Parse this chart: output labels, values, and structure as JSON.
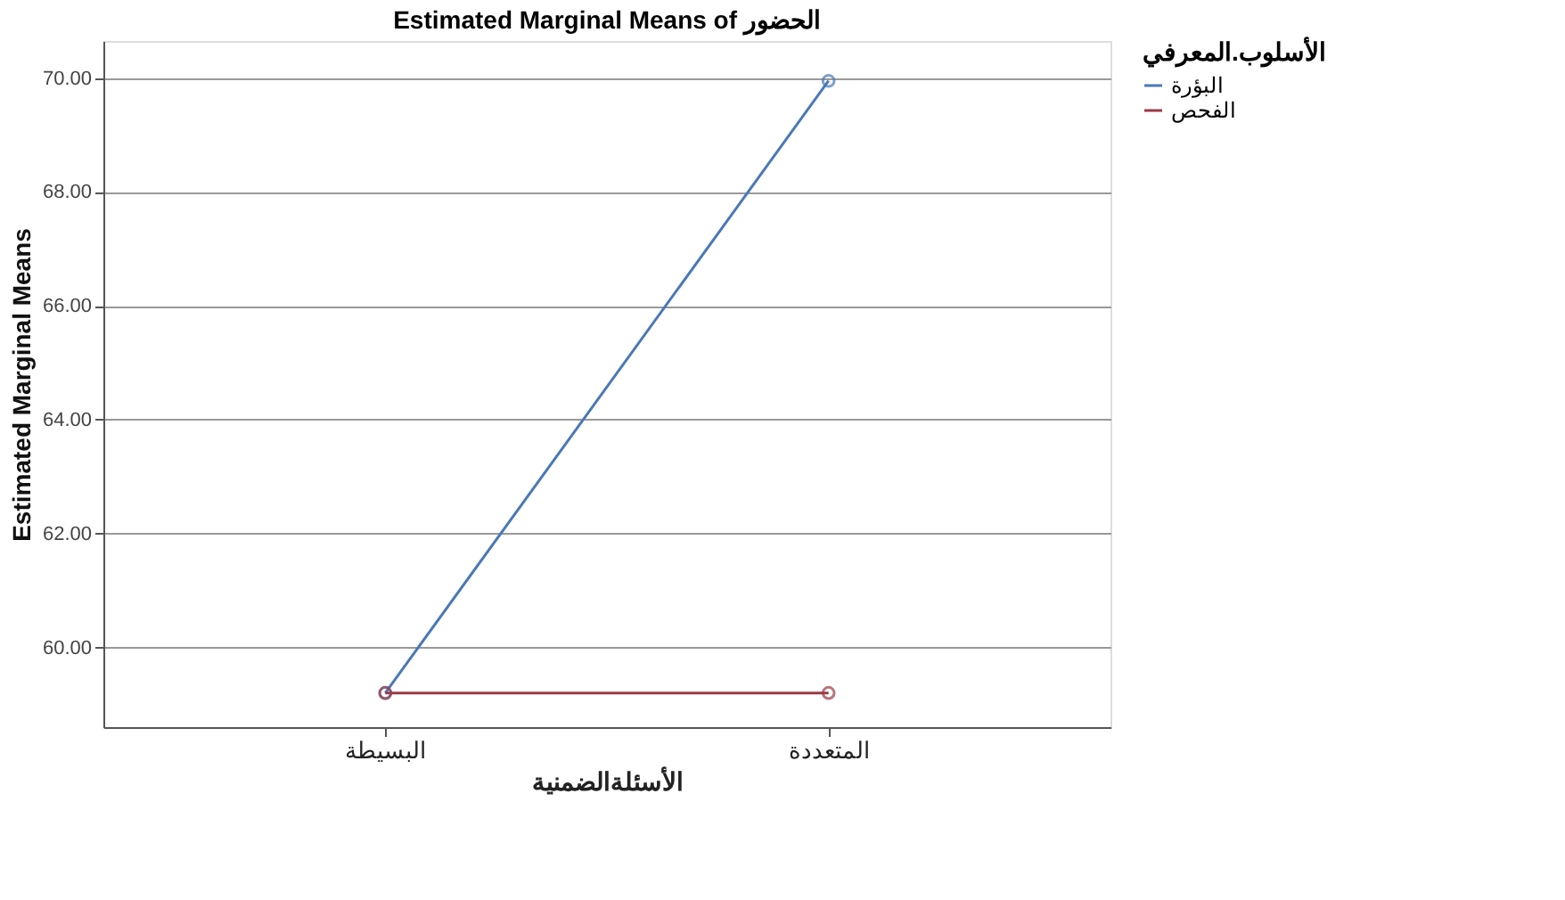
{
  "chart_data": {
    "type": "line",
    "title": "Estimated Marginal Means of الحضور",
    "xlabel": "الأسئلةالضمنية",
    "ylabel": "Estimated Marginal Means",
    "legend_title": "الأسلوب.المعرفي",
    "categories": [
      "البسيطة",
      "المتعددة"
    ],
    "series": [
      {
        "name": "البؤرة",
        "color": "#4a78b8",
        "values": [
          59.2,
          69.95
        ]
      },
      {
        "name": "الفحص",
        "color": "#9a3a44",
        "values": [
          59.2,
          59.2
        ]
      }
    ],
    "ylim": [
      58.6,
      70.65
    ],
    "yticks": [
      {
        "value": 60,
        "label": "60.00"
      },
      {
        "value": 62,
        "label": "62.00"
      },
      {
        "value": 64,
        "label": "64.00"
      },
      {
        "value": 66,
        "label": "66.00"
      },
      {
        "value": 68,
        "label": "68.00"
      },
      {
        "value": 70,
        "label": "70.00"
      }
    ],
    "grid": "y",
    "legend": "top right",
    "marker": "circle",
    "line_style": "solid"
  }
}
